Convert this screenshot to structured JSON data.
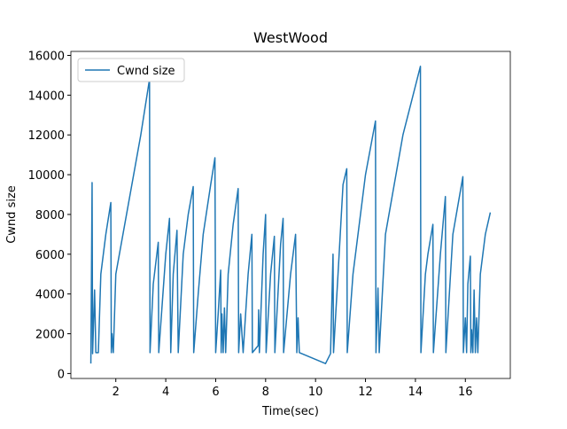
{
  "chart_data": {
    "type": "line",
    "title": "WestWood",
    "xlabel": "Time(sec)",
    "ylabel": "Cwnd size",
    "xlim": [
      0.2,
      17.8
    ],
    "ylim": [
      -250,
      16200
    ],
    "xticks": [
      2,
      4,
      6,
      8,
      10,
      12,
      14,
      16
    ],
    "yticks": [
      0,
      2000,
      4000,
      6000,
      8000,
      10000,
      12000,
      14000,
      16000
    ],
    "legend": "upper left",
    "x": [
      1.0,
      1.05,
      1.07,
      1.15,
      1.2,
      1.3,
      1.4,
      1.6,
      1.8,
      1.82,
      1.85,
      1.9,
      2.0,
      2.5,
      3.0,
      3.35,
      3.37,
      3.5,
      3.7,
      3.72,
      4.0,
      4.15,
      4.2,
      4.3,
      4.45,
      4.5,
      4.7,
      4.9,
      5.1,
      5.12,
      5.3,
      5.5,
      5.8,
      5.97,
      6.0,
      6.1,
      6.2,
      6.22,
      6.25,
      6.3,
      6.35,
      6.4,
      6.5,
      6.7,
      6.9,
      6.92,
      7.0,
      7.1,
      7.3,
      7.45,
      7.47,
      7.7,
      7.72,
      7.75,
      7.9,
      8.0,
      8.02,
      8.2,
      8.35,
      8.37,
      8.6,
      8.7,
      8.72,
      9.0,
      9.2,
      9.25,
      9.3,
      9.35,
      10.4,
      10.6,
      10.7,
      10.72,
      10.9,
      11.1,
      11.25,
      11.27,
      11.5,
      12.0,
      12.4,
      12.42,
      12.5,
      12.55,
      12.8,
      13.5,
      14.2,
      14.22,
      14.4,
      14.5,
      14.7,
      14.72,
      15.0,
      15.2,
      15.22,
      15.5,
      15.9,
      15.92,
      16.0,
      16.05,
      16.1,
      16.2,
      16.22,
      16.25,
      16.3,
      16.35,
      16.4,
      16.45,
      16.5,
      16.6,
      16.8,
      17.0
    ],
    "series": [
      {
        "name": "Cwnd size",
        "color": "#1f77b4",
        "values": [
          500,
          9600,
          1000,
          4200,
          1050,
          1050,
          5000,
          7000,
          8600,
          1050,
          2000,
          1050,
          5000,
          8500,
          12000,
          14800,
          1050,
          4500,
          6600,
          1050,
          6000,
          7800,
          1050,
          5000,
          7200,
          1050,
          6000,
          8000,
          9400,
          1050,
          4000,
          7000,
          9500,
          10850,
          1050,
          3000,
          5200,
          1050,
          3000,
          1050,
          3300,
          1050,
          5000,
          7500,
          9300,
          1050,
          3000,
          1050,
          5000,
          7000,
          1050,
          1400,
          3200,
          1050,
          6000,
          8000,
          1050,
          5000,
          6900,
          1050,
          6500,
          7800,
          1050,
          5000,
          7000,
          1050,
          2800,
          1050,
          500,
          1000,
          6000,
          1050,
          5000,
          9500,
          10300,
          1050,
          5000,
          10000,
          12700,
          1050,
          4300,
          1050,
          7000,
          12000,
          15450,
          1050,
          5000,
          6000,
          7500,
          1050,
          6000,
          8900,
          1050,
          7000,
          9900,
          1050,
          2800,
          1050,
          4500,
          5900,
          1050,
          2200,
          1050,
          4200,
          1050,
          2800,
          1050,
          5000,
          7000,
          8100
        ]
      }
    ]
  }
}
